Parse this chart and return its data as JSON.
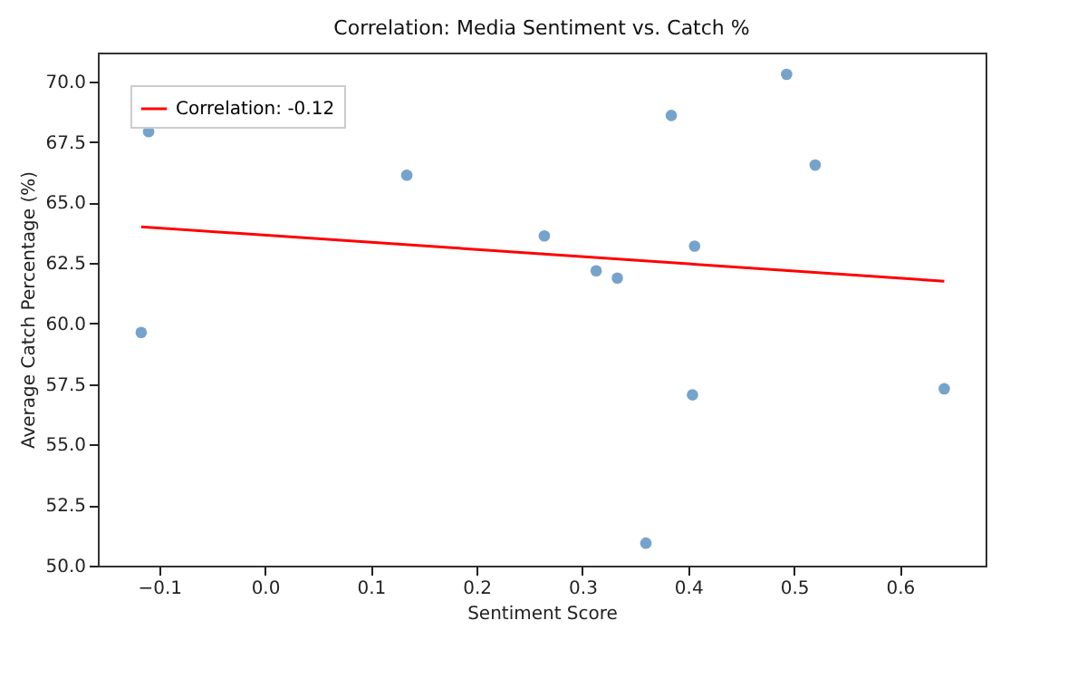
{
  "chart_data": {
    "type": "scatter",
    "title": "Correlation: Media Sentiment vs. Catch %",
    "xlabel": "Sentiment Score",
    "ylabel": "Average Catch Percentage (%)",
    "xlim": [
      -0.158,
      0.681
    ],
    "xticks": [
      {
        "value": -0.1,
        "label": "−0.1"
      },
      {
        "value": 0,
        "label": "0.0"
      },
      {
        "value": 0.1,
        "label": "0.1"
      },
      {
        "value": 0.2,
        "label": "0.2"
      },
      {
        "value": 0.3,
        "label": "0.3"
      },
      {
        "value": 0.4,
        "label": "0.4"
      },
      {
        "value": 0.5,
        "label": "0.5"
      },
      {
        "value": 0.6,
        "label": "0.6"
      }
    ],
    "ylim": [
      49.99,
      71.2
    ],
    "yticks": [
      {
        "value": 50,
        "label": "50.0"
      },
      {
        "value": 52.5,
        "label": "52.5"
      },
      {
        "value": 55,
        "label": "55.0"
      },
      {
        "value": 57.5,
        "label": "57.5"
      },
      {
        "value": 60,
        "label": "60.0"
      },
      {
        "value": 62.5,
        "label": "62.5"
      },
      {
        "value": 65,
        "label": "65.0"
      },
      {
        "value": 67.5,
        "label": "67.5"
      },
      {
        "value": 70,
        "label": "70.0"
      }
    ],
    "grid": false,
    "legend": "top left",
    "series": [
      {
        "type": "scatter",
        "marker": "circle",
        "color": "#6699c6",
        "x": [
          -0.11,
          -0.117,
          0.134,
          0.264,
          0.313,
          0.333,
          0.36,
          0.384,
          0.406,
          0.404,
          0.493,
          0.52,
          0.642
        ],
        "values": [
          67.93,
          59.63,
          66.13,
          63.62,
          62.18,
          61.88,
          50.92,
          68.6,
          63.2,
          57.05,
          70.3,
          66.55,
          57.3
        ]
      },
      {
        "type": "line",
        "name": "Correlation: -0.12",
        "color": "#ff0000",
        "x": [
          -0.117,
          0.642
        ],
        "values": [
          64.0,
          61.75
        ]
      }
    ]
  }
}
